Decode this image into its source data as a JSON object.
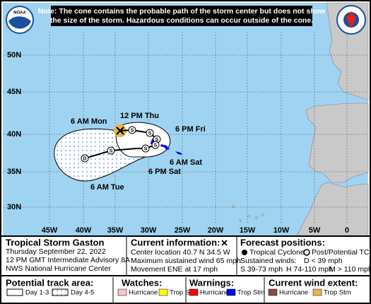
{
  "logo": "NOAA",
  "note": [
    "Note: The cone contains the probable path of the storm center but does not show",
    "the size of the storm. Hazardous conditions can occur outside of the cone."
  ],
  "map": {
    "lat_labels": [
      "50N",
      "45N",
      "40N",
      "35N",
      "30N"
    ],
    "lon_labels": [
      "45W",
      "40W",
      "35W",
      "30W",
      "25W",
      "20W",
      "15W",
      "10W",
      "5W",
      "0"
    ],
    "track_points": [
      "S",
      "S",
      "S",
      "S",
      "S",
      "S",
      "D"
    ],
    "time_labels": [
      "12 PM Thu",
      "6 AM Mon",
      "6 PM Fri",
      "6 AM Sat",
      "6 PM Sat",
      "6 AM Tue"
    ]
  },
  "storm": {
    "title": "Tropical Storm Gaston",
    "date": "Thursday September 22, 2022",
    "advisory": "12 PM GMT Intermediate Advisory 8A",
    "source": "NWS National Hurricane Center"
  },
  "current": {
    "title": "Current information:",
    "lines": [
      "Center location 40.7 N 34.5 W",
      "Maximum sustained wind 65 mph",
      "Movement ENE at 17 mph"
    ]
  },
  "forecast": {
    "title": "Forecast positions:",
    "tropical": "Tropical Cyclone",
    "post": "Post/Potential TC",
    "winds": "Sustained winds:",
    "d": "D < 39 mph",
    "s": "S 39-73 mph",
    "h": "H 74-110 mph",
    "m": "M > 110 mph"
  },
  "legend": {
    "track": "Potential track area:",
    "day13": "Day 1-3",
    "day45": "Day 4-5",
    "watches": "Watches:",
    "warnings": "Warnings:",
    "extent": "Current wind extent:",
    "hurricane": "Hurricane",
    "trop_stm": "Trop Stm"
  }
}
